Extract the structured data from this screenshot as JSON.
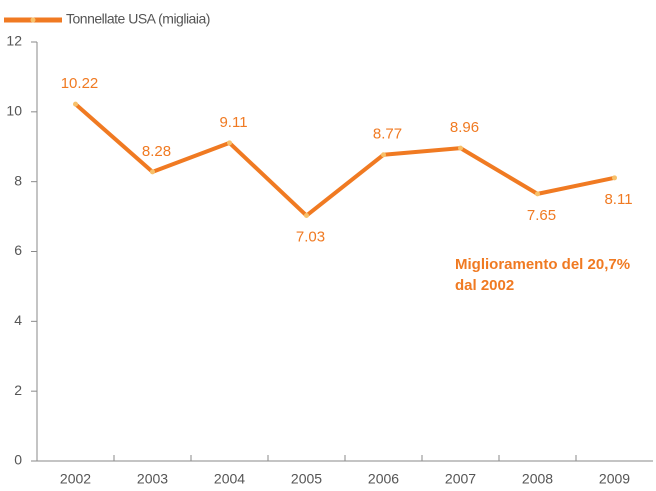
{
  "chart_data": {
    "type": "line",
    "categories": [
      "2002",
      "2003",
      "2004",
      "2005",
      "2006",
      "2007",
      "2008",
      "2009"
    ],
    "series": [
      {
        "name": "Tonnellate USA (migliaia)",
        "color": "#f07a22",
        "values": [
          10.22,
          8.28,
          9.11,
          7.03,
          8.77,
          8.96,
          7.65,
          8.11
        ]
      }
    ],
    "ylim": [
      0,
      12
    ],
    "yticks": [
      0,
      2,
      4,
      6,
      8,
      10,
      12
    ],
    "annotation": [
      "Miglioramento del 20,7%",
      "dal 2002"
    ],
    "legend": "top-left"
  }
}
